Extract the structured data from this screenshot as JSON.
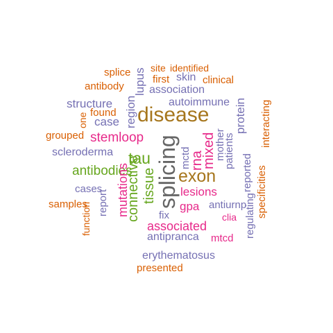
{
  "colors": {
    "orange": "#D95F02",
    "purple": "#7570B3",
    "magenta": "#E7298A",
    "green": "#66A61E",
    "gold": "#A6761D",
    "gray": "#666666"
  },
  "words": [
    {
      "text": "splice",
      "color": "orange"
    },
    {
      "text": "lupus",
      "color": "purple"
    },
    {
      "text": "site",
      "color": "orange"
    },
    {
      "text": "identified",
      "color": "orange"
    },
    {
      "text": "first",
      "color": "orange"
    },
    {
      "text": "skin",
      "color": "purple"
    },
    {
      "text": "clinical",
      "color": "orange"
    },
    {
      "text": "antibody",
      "color": "orange"
    },
    {
      "text": "association",
      "color": "purple"
    },
    {
      "text": "structure",
      "color": "purple"
    },
    {
      "text": "region",
      "color": "purple"
    },
    {
      "text": "autoimmune",
      "color": "purple"
    },
    {
      "text": "protein",
      "color": "purple"
    },
    {
      "text": "interacting",
      "color": "orange"
    },
    {
      "text": "found",
      "color": "orange"
    },
    {
      "text": "disease",
      "color": "gold"
    },
    {
      "text": "one",
      "color": "orange"
    },
    {
      "text": "case",
      "color": "purple"
    },
    {
      "text": "grouped",
      "color": "orange"
    },
    {
      "text": "stemloop",
      "color": "magenta"
    },
    {
      "text": "mother",
      "color": "purple"
    },
    {
      "text": "scleroderma",
      "color": "purple"
    },
    {
      "text": "tau",
      "color": "green"
    },
    {
      "text": "splicing",
      "color": "gray"
    },
    {
      "text": "mctd",
      "color": "purple"
    },
    {
      "text": "rna",
      "color": "magenta"
    },
    {
      "text": "mixed",
      "color": "magenta"
    },
    {
      "text": "patients",
      "color": "purple"
    },
    {
      "text": "reported",
      "color": "purple"
    },
    {
      "text": "antibodies",
      "color": "green"
    },
    {
      "text": "exon",
      "color": "gold"
    },
    {
      "text": "cases",
      "color": "purple"
    },
    {
      "text": "lesions",
      "color": "magenta"
    },
    {
      "text": "specificities",
      "color": "orange"
    },
    {
      "text": "samples",
      "color": "orange"
    },
    {
      "text": "gpa",
      "color": "magenta"
    },
    {
      "text": "antiurnp",
      "color": "purple"
    },
    {
      "text": "report",
      "color": "purple"
    },
    {
      "text": "mutations",
      "color": "magenta"
    },
    {
      "text": "connective",
      "color": "green"
    },
    {
      "text": "tissue",
      "color": "green"
    },
    {
      "text": "fix",
      "color": "purple"
    },
    {
      "text": "clia",
      "color": "magenta"
    },
    {
      "text": "regulating",
      "color": "purple"
    },
    {
      "text": "function",
      "color": "orange"
    },
    {
      "text": "associated",
      "color": "magenta"
    },
    {
      "text": "antipranca",
      "color": "purple"
    },
    {
      "text": "mtcd",
      "color": "magenta"
    },
    {
      "text": "erythematosus",
      "color": "purple"
    },
    {
      "text": "presented",
      "color": "orange"
    }
  ]
}
